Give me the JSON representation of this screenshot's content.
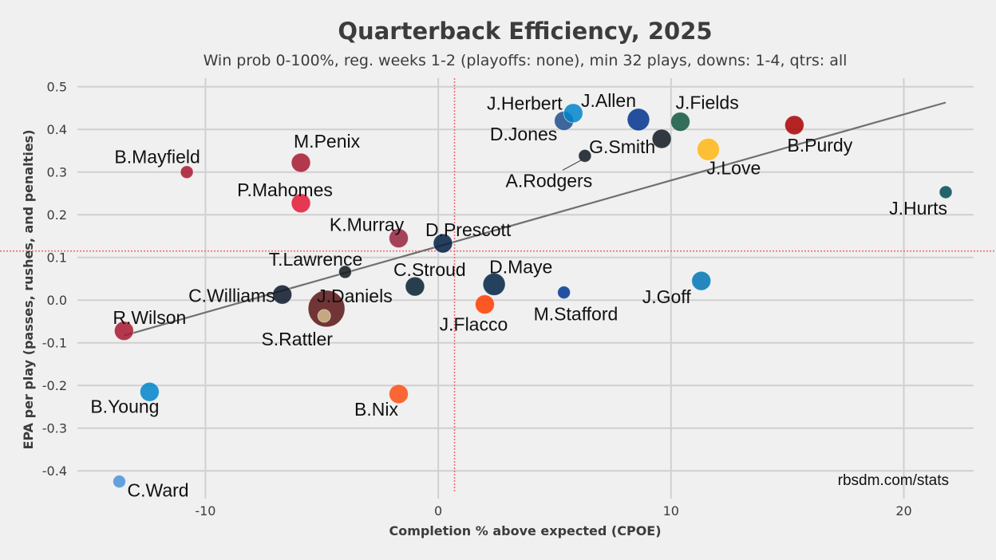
{
  "chart_data": {
    "type": "scatter",
    "title": "Quarterback Efficiency, 2025",
    "subtitle": "Win prob 0-100%, reg. weeks 1-2 (playoffs: none), min 32 plays, downs: 1-4, qtrs: all",
    "xlabel": "Completion % above expected (CPOE)",
    "ylabel": "EPA per play (passes, rushes, and penalties)",
    "xlim": [
      -15.5,
      23
    ],
    "ylim": [
      -0.45,
      0.52
    ],
    "xticks": [
      -10,
      0,
      10,
      20
    ],
    "xtick_labels": [
      "-10",
      "0",
      "10",
      "20"
    ],
    "yticks": [
      0.5,
      0.4,
      0.3,
      0.2,
      0.1,
      0.0,
      -0.1,
      -0.2,
      -0.3,
      -0.4
    ],
    "ytick_labels": [
      "0.5",
      "0.4",
      "0.3",
      "0.2",
      "0.1",
      "0.0",
      "-0.1",
      "-0.2",
      "-0.3",
      "-0.4"
    ],
    "mean_x": 0.7,
    "mean_y": 0.115,
    "trendline": {
      "x": [
        -13.5,
        21.8
      ],
      "y": [
        -0.083,
        0.463
      ]
    },
    "source": "rbsdm.com/stats",
    "points": [
      {
        "name": "J.Herbert",
        "x": 5.4,
        "y": 0.42,
        "color": "#1e4e8c",
        "size": 1
      },
      {
        "name": "J.Allen",
        "x": 8.6,
        "y": 0.423,
        "color": "#00338d",
        "size": 2
      },
      {
        "name": "D.Jones",
        "x": 5.8,
        "y": 0.438,
        "color": "#0085ca",
        "size": 1
      },
      {
        "name": "J.Fields",
        "x": 10.4,
        "y": 0.418,
        "color": "#125740",
        "size": 1
      },
      {
        "name": "B.Purdy",
        "x": 15.3,
        "y": 0.41,
        "color": "#aa0000",
        "size": 1
      },
      {
        "name": "A.Rodgers",
        "x": 6.3,
        "y": 0.338,
        "color": "#101820",
        "size": 0
      },
      {
        "name": "G.Smith",
        "x": 9.6,
        "y": 0.378,
        "color": "#101820",
        "size": 1
      },
      {
        "name": "J.Love",
        "x": 11.6,
        "y": 0.353,
        "color": "#ffb612",
        "size": 2
      },
      {
        "name": "J.Hurts",
        "x": 21.8,
        "y": 0.253,
        "color": "#004c54",
        "size": 0
      },
      {
        "name": "B.Mayfield",
        "x": -10.8,
        "y": 0.3,
        "color": "#a71930",
        "size": 0
      },
      {
        "name": "M.Penix",
        "x": -5.9,
        "y": 0.322,
        "color": "#a71930",
        "size": 1
      },
      {
        "name": "P.Mahomes",
        "x": -5.9,
        "y": 0.227,
        "color": "#e31837",
        "size": 1
      },
      {
        "name": "K.Murray",
        "x": -1.7,
        "y": 0.145,
        "color": "#97233f",
        "size": 1
      },
      {
        "name": "D.Prescott",
        "x": 0.2,
        "y": 0.133,
        "color": "#041e42",
        "size": 1
      },
      {
        "name": "T.Lawrence",
        "x": -4.0,
        "y": 0.066,
        "color": "#101820",
        "size": 0
      },
      {
        "name": "C.Stroud",
        "x": -1.0,
        "y": 0.032,
        "color": "#03202f",
        "size": 1
      },
      {
        "name": "D.Maye",
        "x": 2.4,
        "y": 0.037,
        "color": "#002244",
        "size": 2
      },
      {
        "name": "C.Williams",
        "x": -6.7,
        "y": 0.013,
        "color": "#0b162a",
        "size": 1
      },
      {
        "name": "J.Daniels",
        "x": -4.8,
        "y": -0.02,
        "color": "#5a1414",
        "size": 4
      },
      {
        "name": "S.Rattler",
        "x": -4.9,
        "y": -0.037,
        "color": "#d3bc8d",
        "size": 0
      },
      {
        "name": "M.Stafford",
        "x": 5.4,
        "y": 0.018,
        "color": "#003594",
        "size": 0
      },
      {
        "name": "J.Flacco",
        "x": 2.0,
        "y": -0.01,
        "color": "#ff3c00",
        "size": 1
      },
      {
        "name": "J.Goff",
        "x": 11.3,
        "y": 0.045,
        "color": "#0076b6",
        "size": 1
      },
      {
        "name": "R.Wilson",
        "x": -13.5,
        "y": -0.072,
        "color": "#a71930",
        "size": 1
      },
      {
        "name": "B.Young",
        "x": -12.4,
        "y": -0.215,
        "color": "#0085ca",
        "size": 1
      },
      {
        "name": "B.Nix",
        "x": -1.7,
        "y": -0.22,
        "color": "#fb4f14",
        "size": 1
      },
      {
        "name": "C.Ward",
        "x": -13.7,
        "y": -0.425,
        "color": "#4b92db",
        "size": 0
      }
    ]
  }
}
